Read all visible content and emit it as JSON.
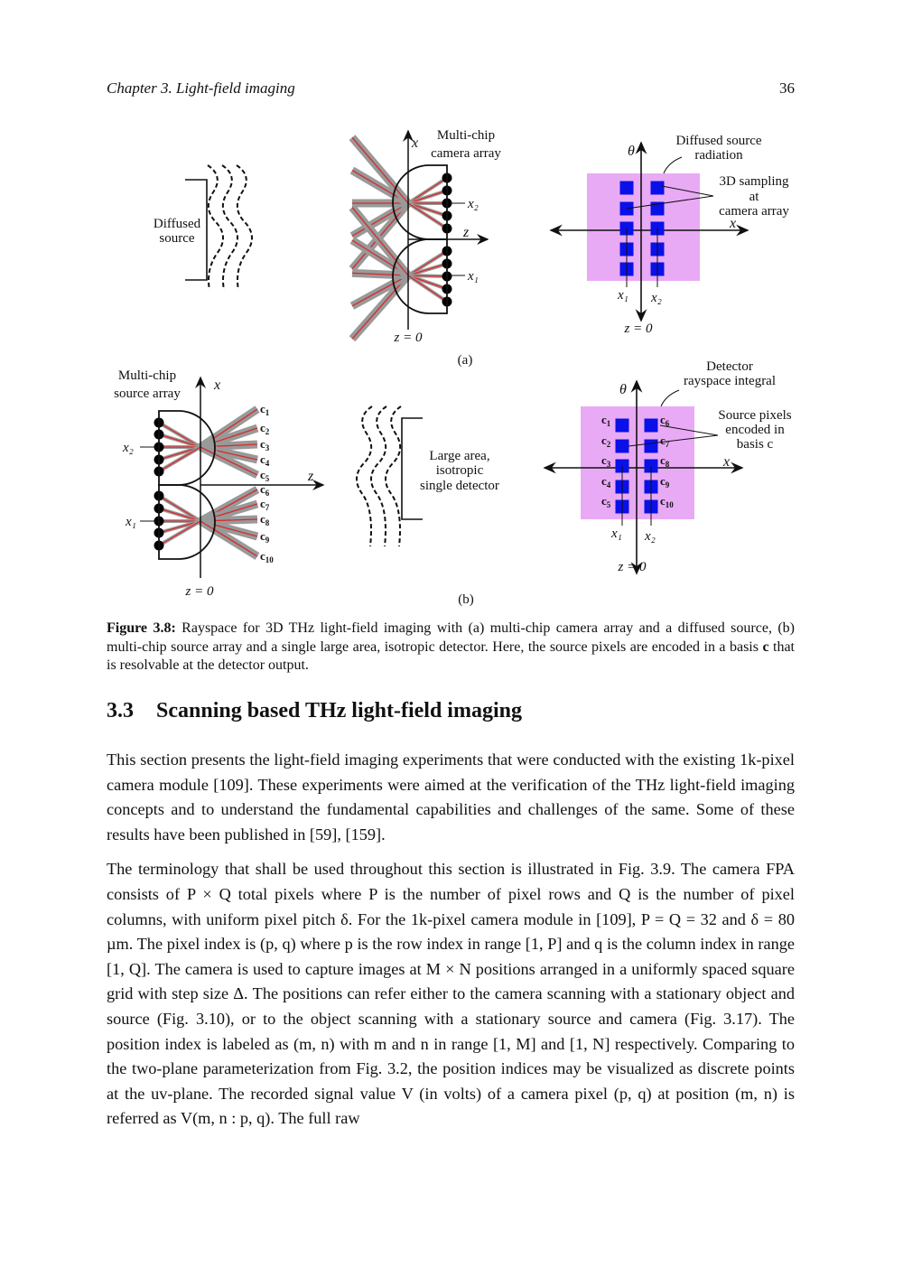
{
  "header": {
    "chapter": "Chapter 3. Light-field imaging",
    "page_number": "36"
  },
  "figure": {
    "panel_a": {
      "source_label": [
        "Diffused",
        "source"
      ],
      "array_label": [
        "Multi-chip",
        "camera array"
      ],
      "axis_x": "x",
      "axis_z": "z",
      "z0": "z = 0",
      "x1": "x₁",
      "x2": "x₂",
      "rayspace_theta": "θ",
      "rayspace_x": "x",
      "radiation_label": [
        "Diffused source",
        "radiation"
      ],
      "sampling_label": [
        "3D sampling",
        "at",
        "camera array"
      ],
      "sub_label": "(a)"
    },
    "panel_b": {
      "array_label": [
        "Multi-chip",
        "source array"
      ],
      "detector_label": [
        "Large area,",
        "isotropic",
        "single detector"
      ],
      "axis_x": "x",
      "axis_z": "z",
      "z0": "z = 0",
      "x1": "x₁",
      "x2": "x₂",
      "codes": [
        "c1",
        "c2",
        "c3",
        "c4",
        "c5",
        "c6",
        "c7",
        "c8",
        "c9",
        "c10"
      ],
      "rayspace_theta": "θ",
      "rayspace_x": "x",
      "integral_label": [
        "Detector",
        "rayspace integral"
      ],
      "encoded_label": [
        "Source pixels",
        "encoded in",
        "basis c"
      ],
      "sub_label": "(b)"
    },
    "colors": {
      "rayspace_fill": "#e9aaf5",
      "pixel": "#0a10e8",
      "ray": "#d62a2a",
      "beam": "#999999"
    }
  },
  "caption": {
    "label": "Figure 3.8:",
    "text": " Rayspace for 3D THz light-field imaging with (a) multi-chip camera array and a diffused source, (b) multi-chip source array and a single large area, isotropic detector. Here, the source pixels are encoded in a basis ",
    "bold_symbol": "c",
    "text_end": " that is resolvable at the detector output."
  },
  "section": {
    "number": "3.3",
    "title": "Scanning based THz light-field imaging"
  },
  "paragraphs": [
    "This section presents the light-field imaging experiments that were conducted with the existing 1k-pixel camera module [109]. These experiments were aimed at the verification of the THz light-field imaging concepts and to understand the fundamental capabilities and challenges of the same. Some of these results have been published in [59], [159].",
    "The terminology that shall be used throughout this section is illustrated in Fig. 3.9. The camera FPA consists of P × Q total pixels where P is the number of pixel rows and Q is the number of pixel columns, with uniform pixel pitch δ. For the 1k-pixel camera module in [109], P = Q = 32 and δ = 80 µm. The pixel index is (p, q) where p is the row index in range [1, P] and q is the column index in range [1, Q]. The camera is used to capture images at M × N positions arranged in a uniformly spaced square grid with step size Δ. The positions can refer either to the camera scanning with a stationary object and source (Fig. 3.10), or to the object scanning with a stationary source and camera (Fig. 3.17). The position index is labeled as (m, n) with m and n in range [1, M] and [1, N] respectively. Comparing to the two-plane parameterization from Fig. 3.2, the position indices may be visualized as discrete points at the uv-plane. The recorded signal value V (in volts) of a camera pixel (p, q) at position (m, n) is referred as V(m, n : p, q). The full raw"
  ]
}
